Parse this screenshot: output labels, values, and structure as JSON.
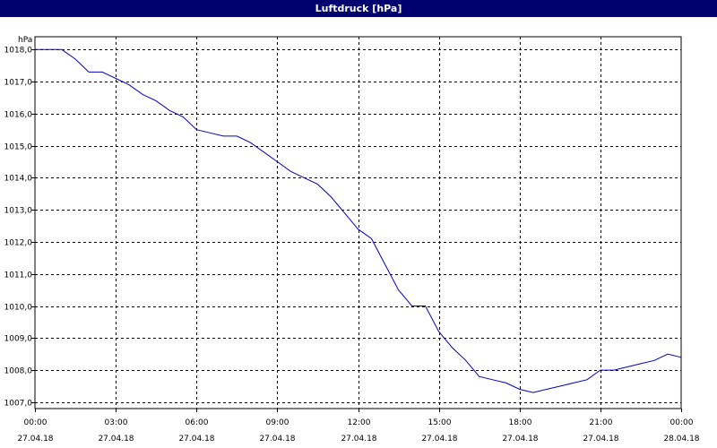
{
  "window": {
    "title": "Luftdruck [hPa]"
  },
  "chart_data": {
    "type": "line",
    "title": "Luftdruck [hPa]",
    "ylabel": "hPa",
    "xlabel": "",
    "ylim": [
      1006.8,
      1018.4
    ],
    "y_ticks": [
      {
        "value": 1018.0,
        "label": "1018,0"
      },
      {
        "value": 1017.0,
        "label": "1017,0"
      },
      {
        "value": 1016.0,
        "label": "1016,0"
      },
      {
        "value": 1015.0,
        "label": "1015,0"
      },
      {
        "value": 1014.0,
        "label": "1014,0"
      },
      {
        "value": 1013.0,
        "label": "1013,0"
      },
      {
        "value": 1012.0,
        "label": "1012,0"
      },
      {
        "value": 1011.0,
        "label": "1011,0"
      },
      {
        "value": 1010.0,
        "label": "1010,0"
      },
      {
        "value": 1009.0,
        "label": "1009,0"
      },
      {
        "value": 1008.0,
        "label": "1008,0"
      },
      {
        "value": 1007.0,
        "label": "1007,0"
      }
    ],
    "xlim": [
      "2018-04-27T00:00",
      "2018-04-28T00:00"
    ],
    "x_ticks": [
      {
        "value": "2018-04-27T00:00",
        "time": "00:00",
        "date": "27.04.18"
      },
      {
        "value": "2018-04-27T03:00",
        "time": "03:00",
        "date": "27.04.18"
      },
      {
        "value": "2018-04-27T06:00",
        "time": "06:00",
        "date": "27.04.18"
      },
      {
        "value": "2018-04-27T09:00",
        "time": "09:00",
        "date": "27.04.18"
      },
      {
        "value": "2018-04-27T12:00",
        "time": "12:00",
        "date": "27.04.18"
      },
      {
        "value": "2018-04-27T15:00",
        "time": "15:00",
        "date": "27.04.18"
      },
      {
        "value": "2018-04-27T18:00",
        "time": "18:00",
        "date": "27.04.18"
      },
      {
        "value": "2018-04-27T21:00",
        "time": "21:00",
        "date": "27.04.18"
      },
      {
        "value": "2018-04-28T00:00",
        "time": "00:00",
        "date": "28.04.18"
      }
    ],
    "grid": true,
    "series": [
      {
        "color": "#0000c8",
        "x": [
          "2018-04-27T00:00",
          "2018-04-27T00:30",
          "2018-04-27T01:00",
          "2018-04-27T01:30",
          "2018-04-27T02:00",
          "2018-04-27T02:30",
          "2018-04-27T03:00",
          "2018-04-27T03:30",
          "2018-04-27T04:00",
          "2018-04-27T04:30",
          "2018-04-27T05:00",
          "2018-04-27T05:30",
          "2018-04-27T06:00",
          "2018-04-27T06:30",
          "2018-04-27T07:00",
          "2018-04-27T07:30",
          "2018-04-27T08:00",
          "2018-04-27T08:30",
          "2018-04-27T09:00",
          "2018-04-27T09:30",
          "2018-04-27T10:00",
          "2018-04-27T10:30",
          "2018-04-27T11:00",
          "2018-04-27T11:30",
          "2018-04-27T12:00",
          "2018-04-27T12:30",
          "2018-04-27T13:00",
          "2018-04-27T13:30",
          "2018-04-27T14:00",
          "2018-04-27T14:30",
          "2018-04-27T15:00",
          "2018-04-27T15:30",
          "2018-04-27T16:00",
          "2018-04-27T16:30",
          "2018-04-27T17:00",
          "2018-04-27T17:30",
          "2018-04-27T18:00",
          "2018-04-27T18:30",
          "2018-04-27T19:00",
          "2018-04-27T19:30",
          "2018-04-27T20:00",
          "2018-04-27T20:30",
          "2018-04-27T21:00",
          "2018-04-27T21:30",
          "2018-04-27T22:00",
          "2018-04-27T22:30",
          "2018-04-27T23:00",
          "2018-04-27T23:30",
          "2018-04-28T00:00"
        ],
        "y": [
          1018.0,
          1018.0,
          1018.0,
          1017.7,
          1017.3,
          1017.3,
          1017.1,
          1016.9,
          1016.6,
          1016.4,
          1016.1,
          1015.9,
          1015.5,
          1015.4,
          1015.3,
          1015.3,
          1015.1,
          1014.8,
          1014.5,
          1014.2,
          1014.0,
          1013.8,
          1013.4,
          1012.9,
          1012.4,
          1012.1,
          1011.3,
          1010.5,
          1010.0,
          1010.0,
          1009.2,
          1008.7,
          1008.3,
          1007.8,
          1007.7,
          1007.6,
          1007.4,
          1007.3,
          1007.4,
          1007.5,
          1007.6,
          1007.7,
          1008.0,
          1008.0,
          1008.1,
          1008.2,
          1008.3,
          1008.5,
          1008.4
        ]
      }
    ]
  }
}
